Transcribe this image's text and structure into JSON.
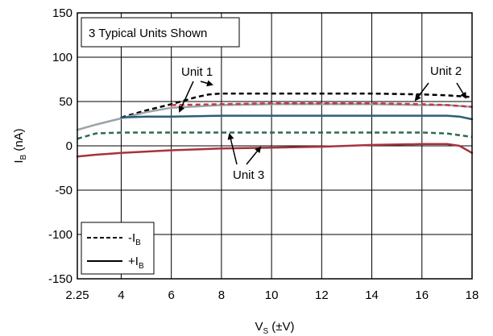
{
  "chart_data": {
    "type": "line",
    "xlabel": "V",
    "xlabel_sub": "S",
    "xlabel_unit": " (±V)",
    "ylabel": "I",
    "ylabel_sub": "B",
    "ylabel_unit": " (nA)",
    "xlim": [
      2.25,
      18
    ],
    "ylim": [
      -150,
      150
    ],
    "xticks": [
      2.25,
      4,
      6,
      8,
      10,
      12,
      14,
      16,
      18
    ],
    "xtick_labels": [
      "2.25",
      "4",
      "6",
      "8",
      "10",
      "12",
      "14",
      "16",
      "18"
    ],
    "yticks": [
      -150,
      -100,
      -50,
      0,
      50,
      100,
      150
    ],
    "ytick_labels": [
      "-150",
      "-100",
      "-50",
      "0",
      "50",
      "100",
      "150"
    ],
    "grid": true,
    "annotation_box": "3 Typical Units Shown",
    "unit_labels": [
      "Unit 1",
      "Unit 2",
      "Unit 3"
    ],
    "legend": {
      "placement": "bottom-left",
      "entries": [
        {
          "label": "-I",
          "sub": "B",
          "style": "dashed"
        },
        {
          "label": "+I",
          "sub": "B",
          "style": "solid"
        }
      ]
    },
    "series": [
      {
        "unit": "Unit 1",
        "polarity": "-IB",
        "style": "dashed",
        "color": "#000000",
        "x": [
          4,
          5,
          6,
          7,
          7.5,
          8,
          10,
          12,
          14,
          16,
          17,
          18
        ],
        "y": [
          32,
          40,
          47,
          55,
          58,
          59,
          59,
          59,
          59,
          58,
          57,
          55
        ]
      },
      {
        "unit": "Unit 1",
        "polarity": "+IB",
        "style": "solid",
        "color": "#9aa3a8",
        "x": [
          2.25,
          3,
          4,
          5,
          6,
          8,
          10,
          12,
          14,
          16,
          17,
          17.5,
          18
        ],
        "y": [
          18,
          24,
          31,
          38,
          43,
          46,
          47,
          47,
          47,
          46,
          46,
          45,
          44
        ]
      },
      {
        "unit": "Unit 2",
        "polarity": "-IB",
        "style": "dashed",
        "color": "#c0394a",
        "x": [
          6,
          8,
          10,
          12,
          14,
          16,
          17,
          18
        ],
        "y": [
          46,
          47,
          48,
          48,
          48,
          47,
          46,
          44
        ]
      },
      {
        "unit": "Unit 2",
        "polarity": "+IB",
        "style": "solid",
        "color": "#2b5d7a",
        "x": [
          4,
          5,
          6,
          8,
          10,
          12,
          14,
          16,
          17,
          17.5,
          18
        ],
        "y": [
          32,
          33,
          33,
          34,
          34,
          34,
          34,
          34,
          34,
          33,
          30
        ]
      },
      {
        "unit": "Unit 3",
        "polarity": "-IB",
        "style": "dashed",
        "color": "#2e6b4a",
        "x": [
          2.25,
          3,
          4,
          6,
          8,
          10,
          12,
          14,
          16,
          17,
          18
        ],
        "y": [
          8,
          14,
          15,
          15,
          15,
          15,
          15,
          15,
          15,
          14,
          10
        ]
      },
      {
        "unit": "Unit 3",
        "polarity": "+IB",
        "style": "solid",
        "color": "#a8323c",
        "x": [
          2.25,
          3,
          4,
          6,
          8,
          10,
          12,
          14,
          16,
          17,
          17.5,
          18
        ],
        "y": [
          -12,
          -10,
          -8,
          -5,
          -3,
          -2,
          -1,
          1,
          2,
          2,
          0,
          -8
        ]
      }
    ]
  }
}
